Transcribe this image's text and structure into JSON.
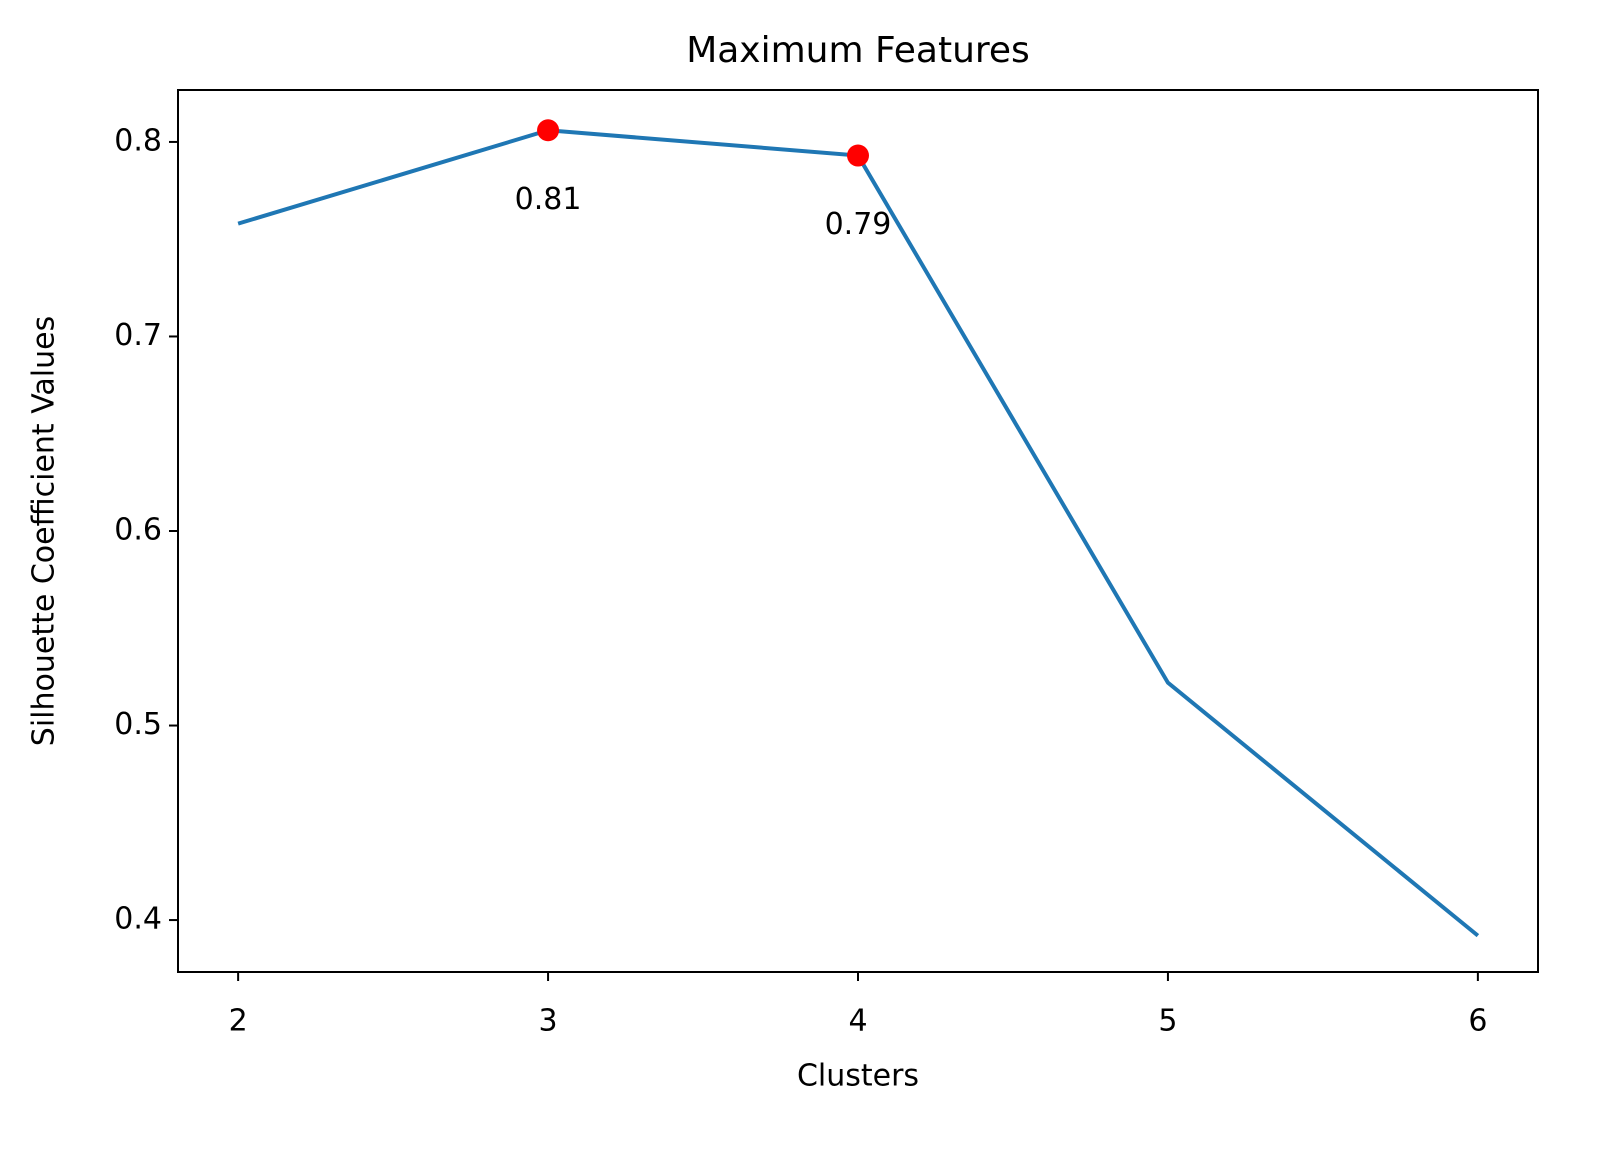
{
  "chart_data": {
    "type": "line",
    "title": "Maximum Features",
    "x_label": "Clusters",
    "y_label": "Silhouette Coefficient Values",
    "x": [
      2,
      3,
      4,
      5,
      6
    ],
    "series": [
      {
        "color": "#1f77b4",
        "values": [
          0.758,
          0.806,
          0.793,
          0.522,
          0.392
        ]
      }
    ],
    "highlights": {
      "color": "#ff0000",
      "x": [
        3,
        4
      ],
      "values": [
        0.806,
        0.793
      ],
      "value_labels": [
        "0.81",
        "0.79"
      ]
    },
    "xlim": [
      1.806,
      6.194
    ],
    "ylim": [
      0.3733,
      0.8267
    ],
    "xticks": [
      2,
      3,
      4,
      5,
      6
    ],
    "yticks": [
      0.4,
      0.5,
      0.6,
      0.7,
      0.8
    ]
  }
}
